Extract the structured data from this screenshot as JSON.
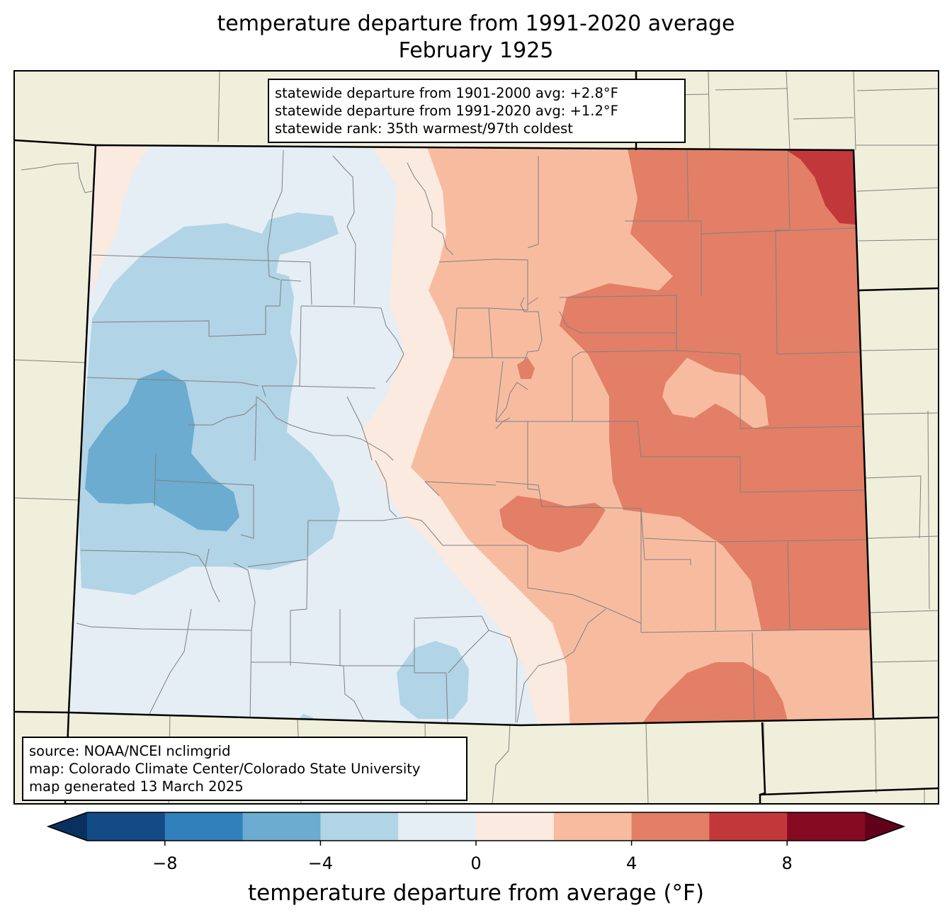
{
  "title": "temperature departure from 1991-2020 average",
  "subtitle": "February 1925",
  "stats": {
    "line1": "statewide departure from 1901-2000 avg: +2.8°F",
    "line2": "statewide departure from 1991-2020 avg: +1.2°F",
    "line3": "statewide rank: 35th warmest/97th coldest"
  },
  "source": {
    "line1": "source: NOAA/NCEI nclimgrid",
    "line2": "map: Colorado Climate Center/Colorado State University",
    "line3": "map generated 13 March 2025"
  },
  "colorbar": {
    "label": "temperature departure from average (°F)",
    "ticks": [
      "−8",
      "−4",
      "0",
      "4",
      "8"
    ],
    "tick_values": [
      -8,
      -4,
      0,
      4,
      8
    ],
    "range": [
      -10,
      10
    ],
    "bins": [
      -10,
      -8,
      -6,
      -4,
      -2,
      0,
      2,
      4,
      6,
      8,
      10
    ],
    "colors": [
      "#134b87",
      "#3280bb",
      "#6bacd0",
      "#b1d4e6",
      "#e5eef5",
      "#faeae0",
      "#f7bca0",
      "#e27f66",
      "#c2383a",
      "#850a22"
    ],
    "under_color": "#0a3060",
    "over_color": "#60001a"
  },
  "colors": {
    "land": "#efefdb",
    "boundary": "#000000",
    "county": "#808080"
  }
}
